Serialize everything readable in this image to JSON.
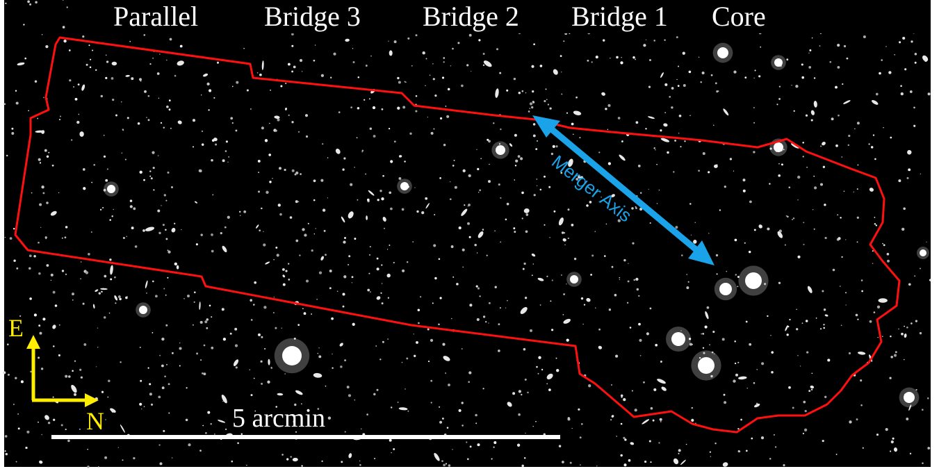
{
  "image": {
    "background_color": "#000000",
    "frame_color": "#ffffff",
    "outline_color": "#ff1010",
    "axis_color": "#1aa3e8",
    "compass_color": "#ffee00",
    "scalebar_color": "#ffffff"
  },
  "regions": {
    "parallel": "Parallel",
    "bridge3": "Bridge 3",
    "bridge2": "Bridge 2",
    "bridge1": "Bridge 1",
    "core": "Core"
  },
  "merger_axis": {
    "label": "Merger Axis"
  },
  "compass": {
    "east": "E",
    "north": "N",
    "icon": "compass-arrows-icon"
  },
  "scale_bar": {
    "label": "5 arcmin"
  }
}
